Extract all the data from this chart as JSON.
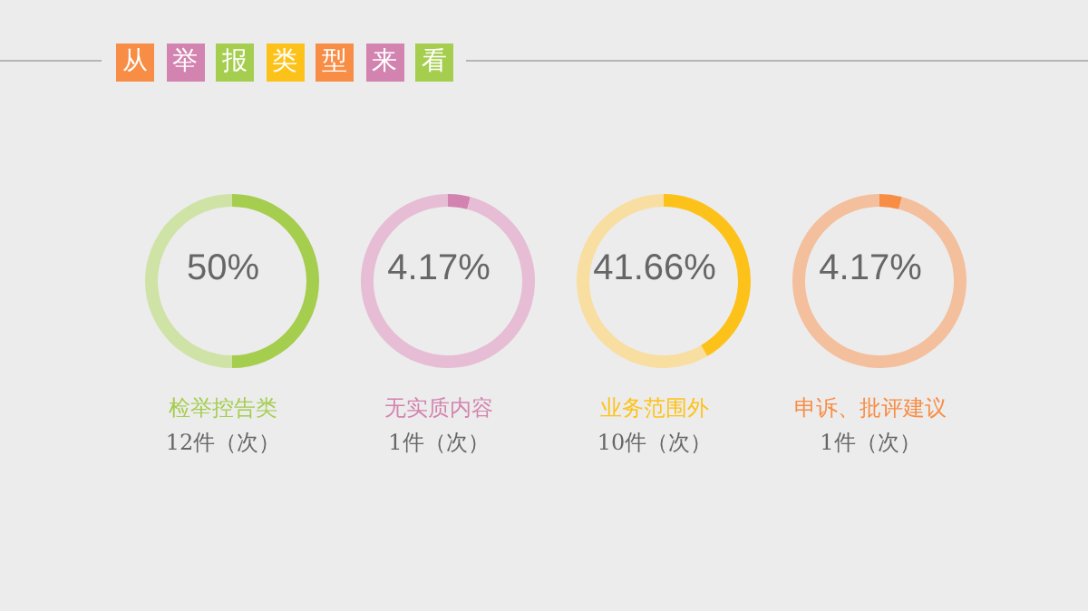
{
  "chart_data": [
    {
      "type": "donut",
      "title": "从举报类型来看",
      "categories": [
        null,
        null
      ],
      "values": [
        50,
        50
      ],
      "colors": [
        "#a5cd4e",
        "#cfe3a6"
      ],
      "annotations": [
        "50%",
        "检举控告类",
        "12件（次）"
      ]
    },
    {
      "type": "donut",
      "categories": [
        null,
        null
      ],
      "values": [
        4.17,
        95.83
      ],
      "colors": [
        "#d383b0",
        "#e6bdd4"
      ],
      "annotations": [
        "4.17%",
        "无实质内容",
        "1件（次）"
      ]
    },
    {
      "type": "donut",
      "categories": [
        null,
        null
      ],
      "values": [
        41.66,
        58.34
      ],
      "colors": [
        "#fdc21a",
        "#f8dea0"
      ],
      "annotations": [
        "41.66%",
        "业务范围外",
        "10件（次）"
      ]
    },
    {
      "type": "donut",
      "categories": [
        null,
        null
      ],
      "values": [
        4.17,
        95.83
      ],
      "colors": [
        "#f88d45",
        "#f4bf9c"
      ],
      "annotations": [
        "4.17%",
        "申诉、批评建议",
        "1件（次）"
      ]
    }
  ]
}
